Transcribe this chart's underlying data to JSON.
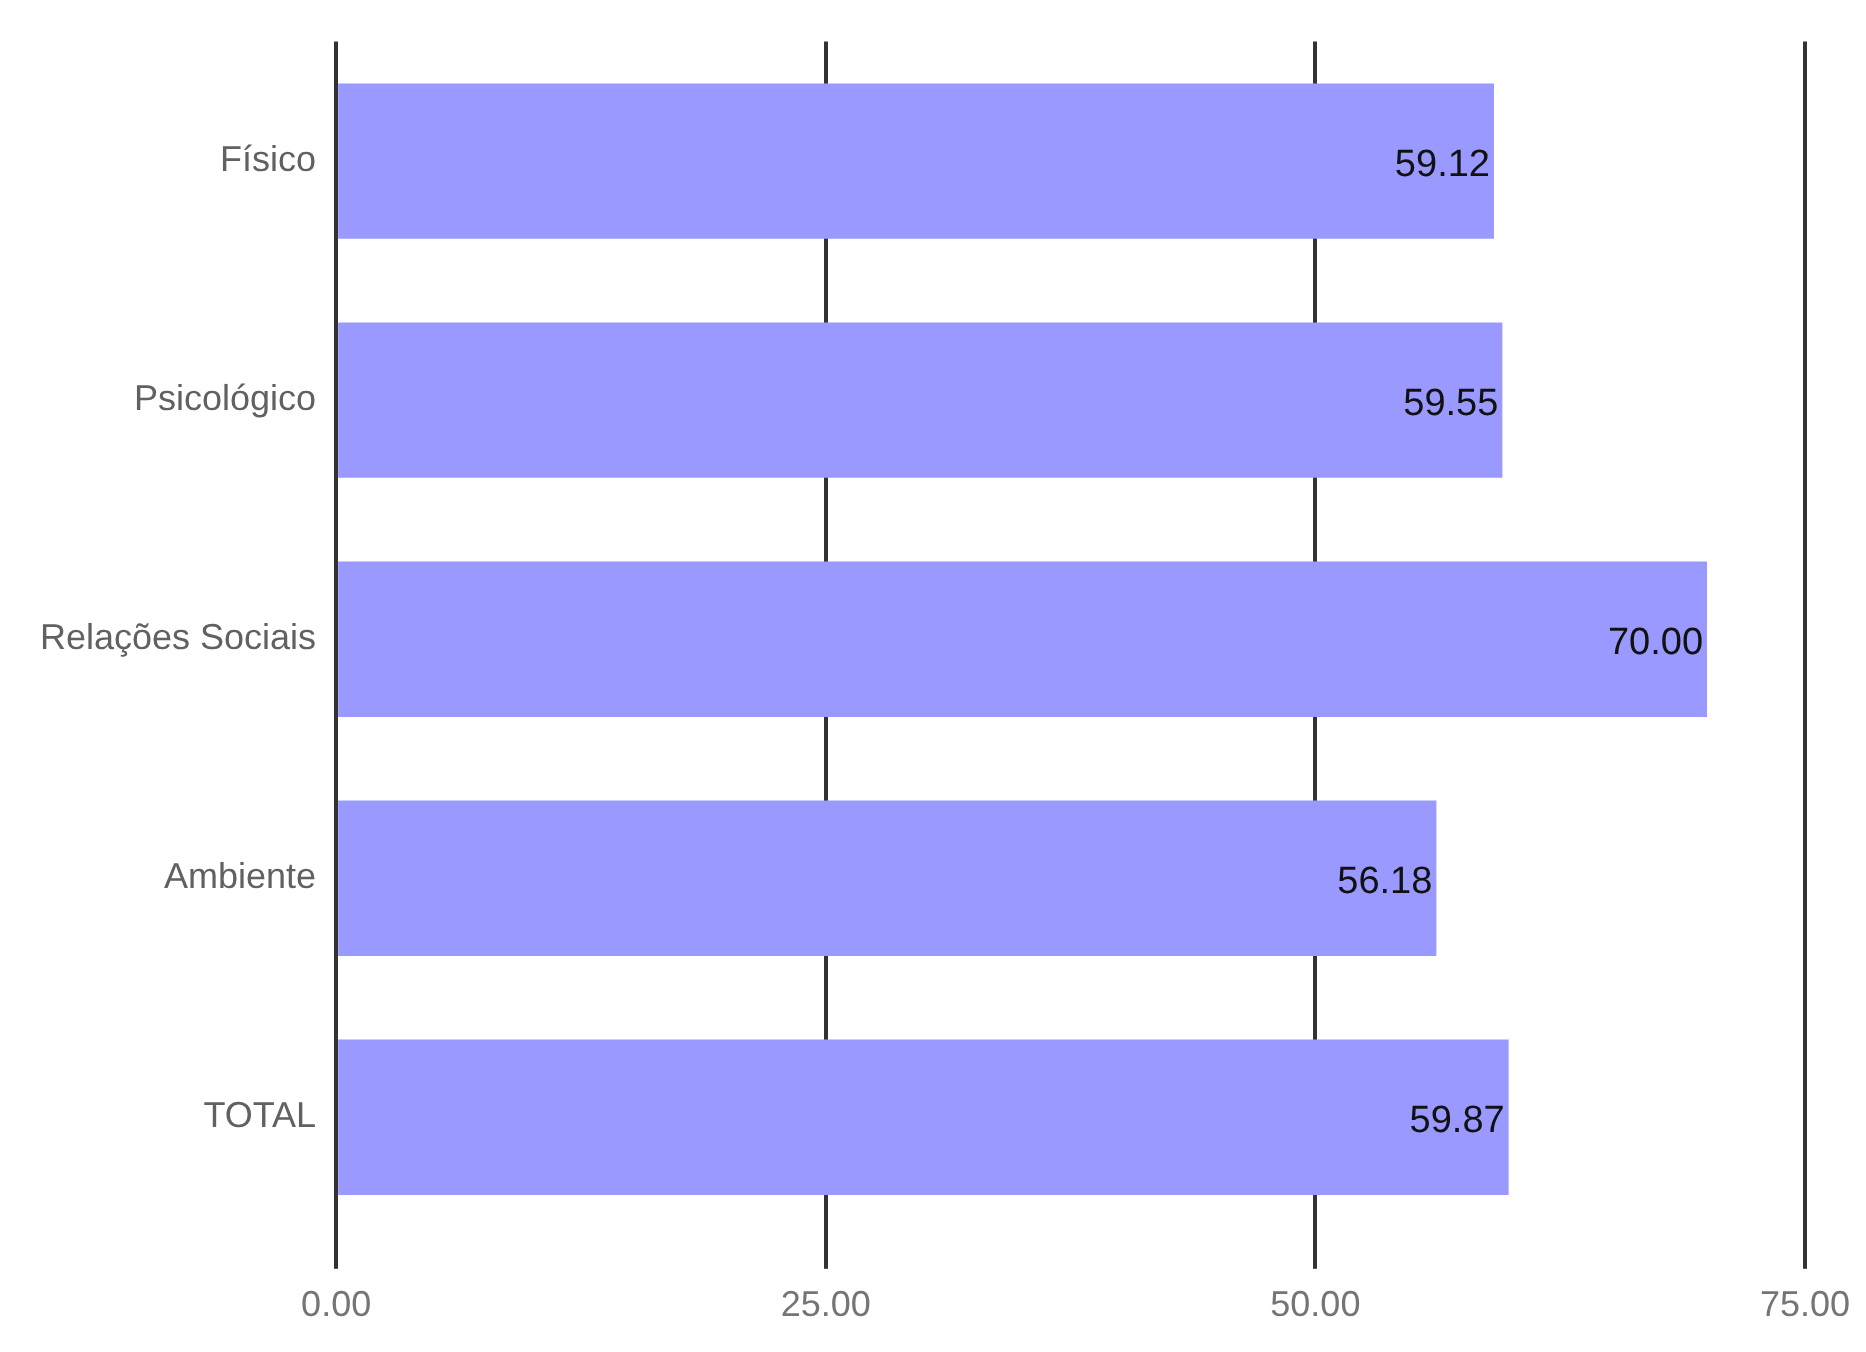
{
  "chart_data": {
    "type": "bar",
    "orientation": "horizontal",
    "categories": [
      "Físico",
      "Psicológico",
      "Relações Sociais",
      "Ambiente",
      "TOTAL"
    ],
    "values": [
      59.12,
      59.55,
      70.0,
      56.18,
      59.87
    ],
    "value_labels": [
      "59.12",
      "59.55",
      "70.00",
      "56.18",
      "59.87"
    ],
    "color": "#9999ff",
    "xlim": [
      0,
      75
    ],
    "xticks": [
      {
        "value": 0,
        "label": "0.00"
      },
      {
        "value": 25,
        "label": "25.00"
      },
      {
        "value": 50,
        "label": "50.00"
      },
      {
        "value": 75,
        "label": "75.00"
      }
    ],
    "grid": "x"
  }
}
